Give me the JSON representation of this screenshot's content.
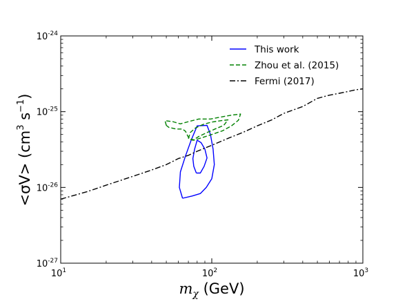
{
  "chart_data": {
    "type": "line",
    "xscale": "log",
    "yscale": "log",
    "xlim": [
      10,
      1000
    ],
    "ylim": [
      1e-27,
      1e-24
    ],
    "xlabel_math": "m",
    "xlabel_sub": "χ",
    "xlabel_units": " (GeV)",
    "ylabel_prefix": "<σV> (cm",
    "ylabel_exp1": "3",
    "ylabel_mid": " s",
    "ylabel_exp2": "−1",
    "ylabel_suffix": ")",
    "x_ticks": [
      {
        "value": 10,
        "base": "10",
        "exp": "1"
      },
      {
        "value": 100,
        "base": "10",
        "exp": "2"
      },
      {
        "value": 1000,
        "base": "10",
        "exp": "3"
      }
    ],
    "y_ticks": [
      {
        "value": 1e-27,
        "base": "10",
        "exp": "-27"
      },
      {
        "value": 1e-26,
        "base": "10",
        "exp": "-26"
      },
      {
        "value": 1e-25,
        "base": "10",
        "exp": "-25"
      },
      {
        "value": 1e-24,
        "base": "10",
        "exp": "-24"
      }
    ],
    "legend_position": "top-right",
    "series": [
      {
        "name": "This work",
        "color": "#0000ff",
        "dash": "solid",
        "paths": [
          [
            [
              64,
              7.2e-27
            ],
            [
              61,
              1e-26
            ],
            [
              62,
              1.6e-26
            ],
            [
              67,
              2.6e-26
            ],
            [
              73,
              4.2e-26
            ],
            [
              80,
              6.5e-26
            ],
            [
              93,
              6.6e-26
            ],
            [
              98,
              5e-26
            ],
            [
              102,
              3.2e-26
            ],
            [
              104,
              2e-26
            ],
            [
              100,
              1.3e-26
            ],
            [
              92,
              1e-26
            ],
            [
              84,
              8.3e-27
            ],
            [
              74,
              7.7e-27
            ],
            [
              64,
              7.2e-27
            ]
          ],
          [
            [
              79,
              1.55e-26
            ],
            [
              76,
              1.9e-26
            ],
            [
              75,
              2.4e-26
            ],
            [
              77,
              3.2e-26
            ],
            [
              80,
              4.2e-26
            ],
            [
              85,
              3.9e-26
            ],
            [
              90,
              3.2e-26
            ],
            [
              93,
              2.45e-26
            ],
            [
              89,
              1.9e-26
            ],
            [
              84,
              1.55e-26
            ],
            [
              79,
              1.55e-26
            ]
          ]
        ]
      },
      {
        "name": "Zhou et al. (2015)",
        "color": "#008000",
        "dash": "dashed",
        "paths": [
          [
            [
              50,
              6.6e-26
            ],
            [
              49,
              7.6e-26
            ],
            [
              55,
              7.4e-26
            ],
            [
              62,
              6.9e-26
            ],
            [
              72,
              7.5e-26
            ],
            [
              82,
              8e-26
            ],
            [
              98,
              8e-26
            ],
            [
              115,
              8.5e-26
            ],
            [
              135,
              9e-26
            ],
            [
              155,
              9.3e-26
            ],
            [
              150,
              7.7e-26
            ],
            [
              135,
              6.5e-26
            ],
            [
              118,
              5.6e-26
            ],
            [
              100,
              5e-26
            ],
            [
              88,
              4.6e-26
            ],
            [
              76,
              4.2e-26
            ],
            [
              70,
              4.6e-26
            ],
            [
              67,
              5.5e-26
            ],
            [
              64,
              5.9e-26
            ],
            [
              58,
              5.9e-26
            ],
            [
              52,
              6.2e-26
            ],
            [
              50,
              6.6e-26
            ]
          ],
          [
            [
              70,
              4.4e-26
            ],
            [
              72,
              5.3e-26
            ],
            [
              78,
              6.1e-26
            ],
            [
              88,
              6.8e-26
            ],
            [
              100,
              7.3e-26
            ],
            [
              115,
              7.6e-26
            ],
            [
              128,
              7.8e-26
            ],
            [
              120,
              6.6e-26
            ],
            [
              105,
              5.9e-26
            ],
            [
              93,
              5.3e-26
            ],
            [
              82,
              4.7e-26
            ],
            [
              75,
              4.2e-26
            ],
            [
              70,
              4.4e-26
            ]
          ]
        ]
      },
      {
        "name": "Fermi (2017)",
        "color": "#000000",
        "dash": "dashdot",
        "paths": [
          [
            [
              10,
              7e-27
            ],
            [
              15,
              8.8e-27
            ],
            [
              20,
              1.07e-26
            ],
            [
              30,
              1.4e-26
            ],
            [
              40,
              1.7e-26
            ],
            [
              50,
              2e-26
            ],
            [
              60,
              2.4e-26
            ],
            [
              70,
              2.65e-26
            ],
            [
              80,
              3e-26
            ],
            [
              100,
              3.6e-26
            ],
            [
              130,
              4.5e-26
            ],
            [
              160,
              5.3e-26
            ],
            [
              200,
              6.5e-26
            ],
            [
              250,
              7.8e-26
            ],
            [
              300,
              9.5e-26
            ],
            [
              400,
              1.17e-25
            ],
            [
              500,
              1.5e-25
            ],
            [
              600,
              1.65e-25
            ],
            [
              700,
              1.75e-25
            ],
            [
              800,
              1.85e-25
            ],
            [
              900,
              1.95e-25
            ],
            [
              1000,
              2e-25
            ]
          ]
        ]
      }
    ]
  }
}
